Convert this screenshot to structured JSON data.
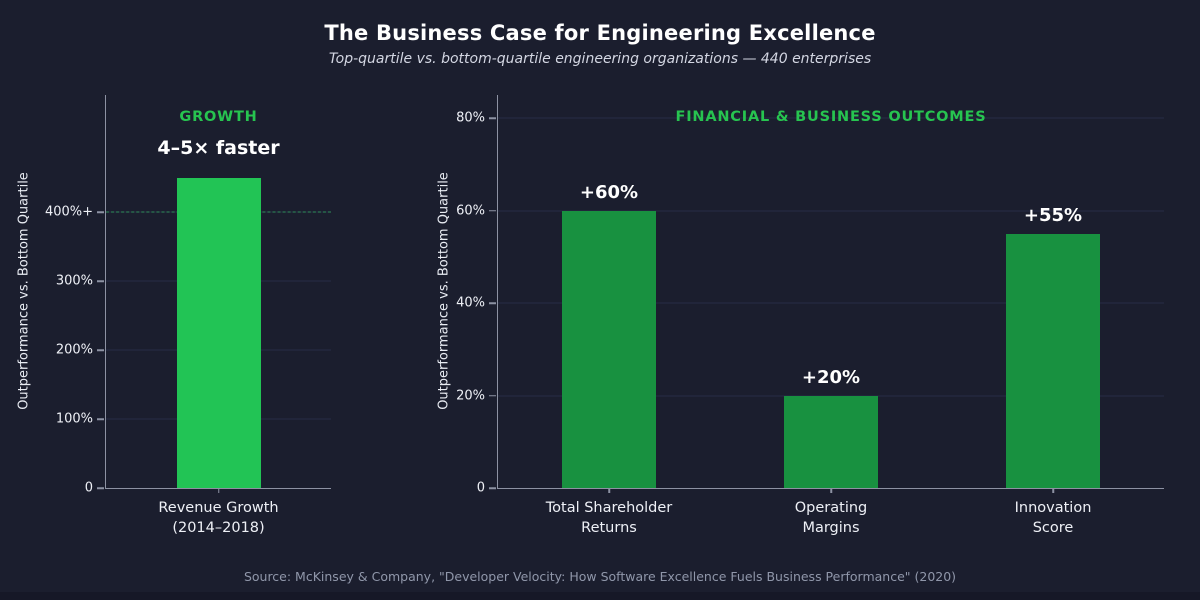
{
  "header": {
    "title": "The Business Case for Engineering Excellence",
    "subtitle": "Top-quartile vs. bottom-quartile engineering organizations — 440 enterprises"
  },
  "footer": {
    "source": "Source: McKinsey & Company, \"Developer Velocity: How Software Excellence Fuels Business Performance\" (2020)"
  },
  "colors": {
    "background": "#1b1e2e",
    "bottom_strip": "#161827",
    "bright_green": "#22c455",
    "dark_green": "#189140",
    "panel_title_green": "#27c450",
    "gridline": "#272c45",
    "spine": "#8d92a3",
    "reference_dash_green": "#2f8f5b",
    "text_primary": "#ffffff",
    "text_muted": "#9097aa"
  },
  "chart_data": [
    {
      "type": "bar",
      "panel_title": "GROWTH",
      "annotation": "4–5× faster",
      "ylabel": "Outperformance vs. Bottom Quartile",
      "categories": [
        "Revenue Growth\n(2014–2018)"
      ],
      "values": [
        450
      ],
      "value_labels": [],
      "bar_color": "#22c455",
      "yticks": [
        0,
        100,
        200,
        300,
        400
      ],
      "ytick_labels": [
        "0",
        "100%",
        "200%",
        "300%",
        "400%+"
      ],
      "ylim": [
        0,
        570
      ],
      "ref_line": 400,
      "grid": true,
      "legend": "none"
    },
    {
      "type": "bar",
      "panel_title": "FINANCIAL & BUSINESS OUTCOMES",
      "annotation": "",
      "ylabel": "Outperformance vs. Bottom Quartile",
      "categories": [
        "Total Shareholder\nReturns",
        "Operating\nMargins",
        "Innovation\nScore"
      ],
      "values": [
        60,
        20,
        55
      ],
      "value_labels": [
        "+60%",
        "+20%",
        "+55%"
      ],
      "bar_color": "#189140",
      "yticks": [
        0,
        20,
        40,
        60,
        80
      ],
      "ytick_labels": [
        "0",
        "20%",
        "40%",
        "60%",
        "80%"
      ],
      "ylim": [
        0,
        85
      ],
      "ref_line": null,
      "grid": true,
      "legend": "none"
    }
  ]
}
